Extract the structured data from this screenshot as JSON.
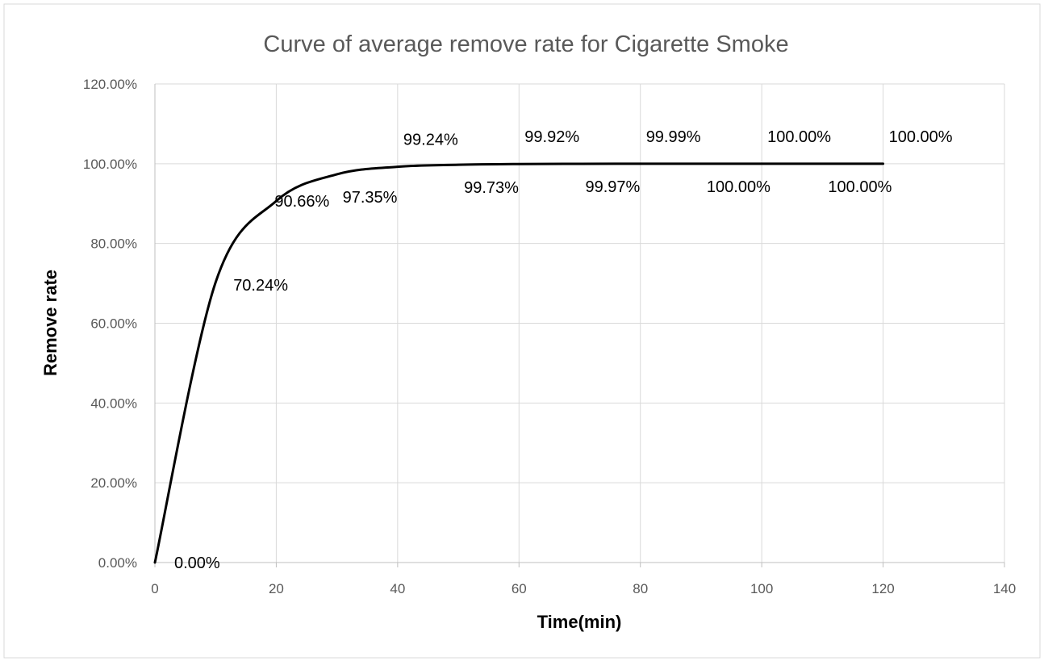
{
  "chart_data": {
    "type": "line",
    "title": "Curve of average remove rate for Cigarette Smoke",
    "xlabel": "Time(min)",
    "ylabel": "Remove rate",
    "xlim": [
      0,
      140
    ],
    "ylim": [
      0,
      1.2
    ],
    "x_ticks": [
      "0",
      "20",
      "40",
      "60",
      "80",
      "100",
      "120",
      "140"
    ],
    "y_ticks": [
      "0.00%",
      "20.00%",
      "40.00%",
      "60.00%",
      "80.00%",
      "100.00%",
      "120.00%"
    ],
    "grid": true,
    "legend": "none",
    "line_color": "#000000",
    "series": [
      {
        "x": [
          0,
          10,
          20,
          30,
          40,
          50,
          60,
          70,
          80,
          90,
          100,
          110,
          120
        ],
        "values": [
          0.0,
          0.7024,
          0.9066,
          0.9735,
          0.9924,
          0.9973,
          0.9992,
          0.9997,
          0.9999,
          1.0,
          1.0,
          1.0,
          1.0
        ],
        "labels": [
          "0.00%",
          "70.24%",
          "90.66%",
          "97.35%",
          "99.24%",
          "99.73%",
          "99.92%",
          "99.97%",
          "99.99%",
          "100.00%",
          "100.00%",
          "100.00%",
          "100.00%"
        ]
      }
    ]
  }
}
